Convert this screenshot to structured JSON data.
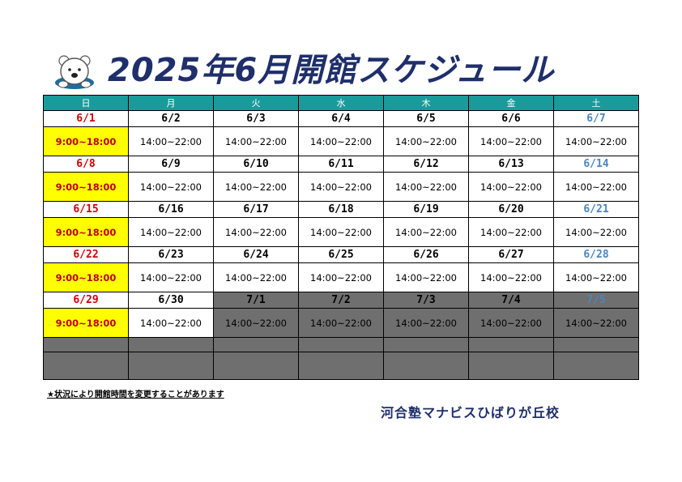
{
  "header": {
    "title": "2025年6月開館スケジュール"
  },
  "table": {
    "weekdays": [
      "日",
      "月",
      "火",
      "水",
      "木",
      "金",
      "土"
    ],
    "weeks": [
      {
        "dates": [
          "6/1",
          "6/2",
          "6/3",
          "6/4",
          "6/5",
          "6/6",
          "6/7"
        ],
        "times": [
          "9:00~18:00",
          "14:00~22:00",
          "14:00~22:00",
          "14:00~22:00",
          "14:00~22:00",
          "14:00~22:00",
          "14:00~22:00"
        ]
      },
      {
        "dates": [
          "6/8",
          "6/9",
          "6/10",
          "6/11",
          "6/12",
          "6/13",
          "6/14"
        ],
        "times": [
          "9:00~18:00",
          "14:00~22:00",
          "14:00~22:00",
          "14:00~22:00",
          "14:00~22:00",
          "14:00~22:00",
          "14:00~22:00"
        ]
      },
      {
        "dates": [
          "6/15",
          "6/16",
          "6/17",
          "6/18",
          "6/19",
          "6/20",
          "6/21"
        ],
        "times": [
          "9:00~18:00",
          "14:00~22:00",
          "14:00~22:00",
          "14:00~22:00",
          "14:00~22:00",
          "14:00~22:00",
          "14:00~22:00"
        ]
      },
      {
        "dates": [
          "6/22",
          "6/23",
          "6/24",
          "6/25",
          "6/26",
          "6/27",
          "6/28"
        ],
        "times": [
          "9:00~18:00",
          "14:00~22:00",
          "14:00~22:00",
          "14:00~22:00",
          "14:00~22:00",
          "14:00~22:00",
          "14:00~22:00"
        ]
      },
      {
        "dates": [
          "6/29",
          "6/30",
          "7/1",
          "7/2",
          "7/3",
          "7/4",
          "7/5"
        ],
        "times": [
          "9:00~18:00",
          "14:00~22:00",
          "14:00~22:00",
          "14:00~22:00",
          "14:00~22:00",
          "14:00~22:00",
          "14:00~22:00"
        ]
      }
    ]
  },
  "footer": {
    "note": "★状況により開館時間を変更することがあります",
    "school": "河合塾マナビスひばりが丘校"
  },
  "colors": {
    "header_teal": "#1a9b9b",
    "sunday_red": "#d40000",
    "saturday_blue": "#4a86c0",
    "highlight_yellow": "#ffff00",
    "out_of_month_gray": "#6f6f6f",
    "title_navy": "#1f2f6b"
  },
  "icons": {
    "mascot": "polar-bear-icon"
  }
}
